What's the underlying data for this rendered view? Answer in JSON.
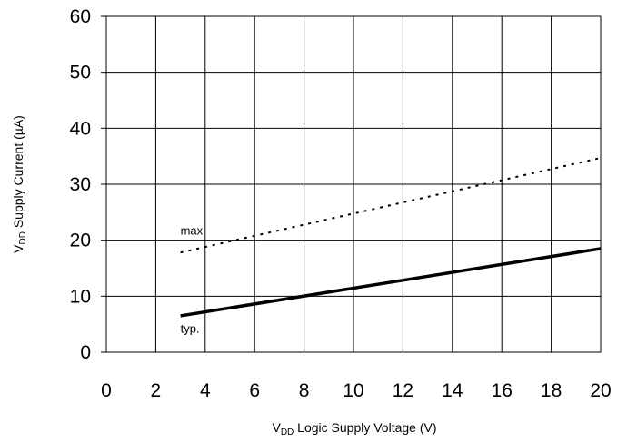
{
  "chart_data": {
    "type": "line",
    "xlabel": {
      "main": "V",
      "sub": "DD",
      "rest": " Logic Supply Voltage (V)"
    },
    "ylabel": {
      "main": "V",
      "sub": "DD",
      "rest": " Supply Current (µA)"
    },
    "xlim": [
      0,
      20
    ],
    "ylim": [
      0,
      60
    ],
    "xticks": [
      0,
      2,
      4,
      6,
      8,
      10,
      12,
      14,
      16,
      18,
      20
    ],
    "yticks": [
      0,
      10,
      20,
      30,
      40,
      50,
      60
    ],
    "grid": true,
    "series": [
      {
        "name": "max",
        "style": "dotted",
        "x": [
          3,
          20
        ],
        "y": [
          17.8,
          34.7
        ]
      },
      {
        "name": "typ.",
        "style": "solid",
        "x": [
          3,
          20
        ],
        "y": [
          6.5,
          18.5
        ]
      }
    ],
    "annotations": [
      {
        "text": "max",
        "x": 3,
        "y": 21,
        "series": 0
      },
      {
        "text": "typ.",
        "x": 3,
        "y": 3.5,
        "series": 1
      }
    ]
  }
}
